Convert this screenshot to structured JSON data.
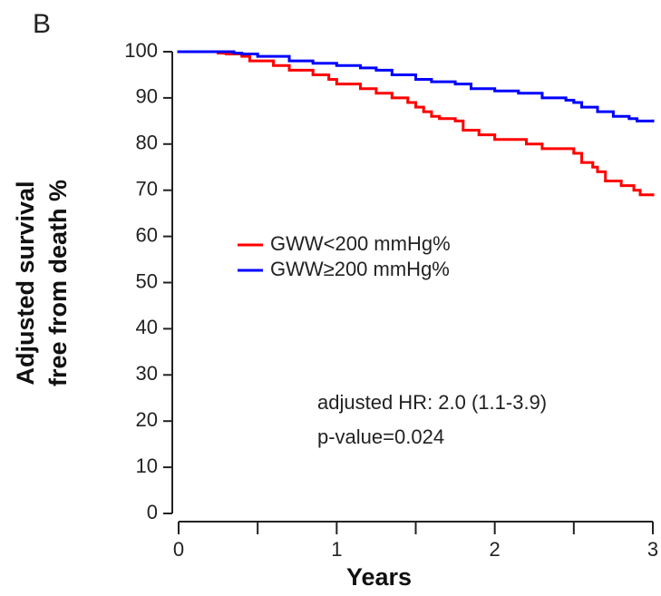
{
  "chart_data": {
    "type": "step",
    "panel_label": "B",
    "xlabel": "Years",
    "ylabel": [
      "Adjusted survival",
      "free from death %"
    ],
    "xlim": [
      0,
      3
    ],
    "xticks": [
      0,
      1,
      2,
      3
    ],
    "xminorticks": [
      0.5,
      1.5,
      2.5
    ],
    "ylim": [
      0,
      100
    ],
    "yticks": [
      0,
      10,
      20,
      30,
      40,
      50,
      60,
      70,
      80,
      90,
      100
    ],
    "annotations": [
      "adjusted HR: 2.0 (1.1-3.9)",
      "p-value=0.024"
    ],
    "series": [
      {
        "name": "GWW<200 mmHg%",
        "color": "#ff0000",
        "x": [
          0,
          0.25,
          0.3,
          0.4,
          0.45,
          0.6,
          0.7,
          0.85,
          0.95,
          1.0,
          1.15,
          1.25,
          1.35,
          1.45,
          1.5,
          1.55,
          1.6,
          1.65,
          1.75,
          1.8,
          1.9,
          2.0,
          2.2,
          2.3,
          2.5,
          2.55,
          2.62,
          2.65,
          2.7,
          2.8,
          2.88,
          2.92,
          3.0
        ],
        "values": [
          100,
          99.7,
          99.5,
          99,
          98,
          97,
          96,
          95,
          94,
          93,
          92,
          91,
          90,
          89,
          88,
          87,
          86,
          85.5,
          85,
          83,
          82,
          81,
          80,
          79,
          78,
          76,
          75,
          74,
          72,
          71,
          70,
          69,
          69
        ]
      },
      {
        "name": "GWW≥200 mmHg%",
        "color": "#0000ff",
        "x": [
          0,
          0.35,
          0.4,
          0.5,
          0.7,
          0.85,
          1.0,
          1.15,
          1.25,
          1.35,
          1.5,
          1.6,
          1.75,
          1.85,
          2.0,
          2.15,
          2.3,
          2.45,
          2.5,
          2.55,
          2.65,
          2.75,
          2.85,
          2.9,
          3.0
        ],
        "values": [
          100,
          99.7,
          99.5,
          99,
          98,
          97.5,
          97,
          96.5,
          96,
          95,
          94,
          93.5,
          93,
          92,
          91.5,
          91,
          90,
          89.5,
          89,
          88,
          87,
          86,
          85.5,
          85,
          85
        ]
      }
    ]
  }
}
